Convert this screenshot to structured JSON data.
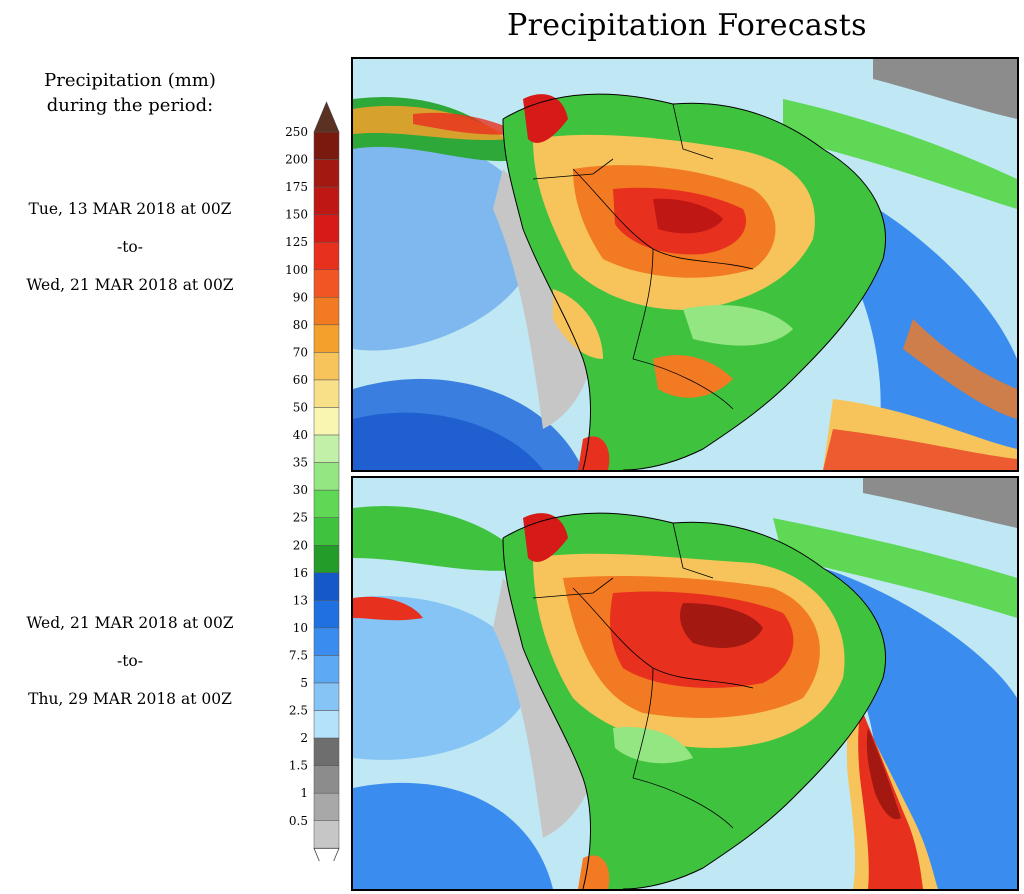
{
  "title": "Precipitation Forecasts",
  "legend_title_line1": "Precipitation (mm)",
  "legend_title_line2": "during the period:",
  "periods": [
    {
      "start": "Tue, 13 MAR 2018 at 00Z",
      "to": "-to-",
      "end": "Wed, 21 MAR 2018 at 00Z"
    },
    {
      "start": "Wed, 21 MAR 2018 at 00Z",
      "to": "-to-",
      "end": "Thu, 29 MAR 2018 at 00Z"
    }
  ],
  "color_scale": {
    "labels": [
      "250",
      "200",
      "175",
      "150",
      "125",
      "100",
      "90",
      "80",
      "70",
      "60",
      "50",
      "40",
      "35",
      "30",
      "25",
      "20",
      "16",
      "13",
      "10",
      "7.5",
      "5",
      "2.5",
      "2",
      "1.5",
      "1",
      "0.5"
    ],
    "colors": [
      "#7a1a0e",
      "#a31912",
      "#bf1714",
      "#d61a17",
      "#e8301e",
      "#f05523",
      "#f27a22",
      "#f4a02c",
      "#f6c45a",
      "#f8e088",
      "#f8f6b0",
      "#c2f0a8",
      "#94e682",
      "#5ed855",
      "#3fc23e",
      "#239c2a",
      "#1558c8",
      "#1f70e0",
      "#3a8cef",
      "#5ea9f3",
      "#86c4f6",
      "#b4e2fa",
      "#6e6e6e",
      "#8c8c8c",
      "#a8a8a8",
      "#c6c6c6"
    ]
  }
}
